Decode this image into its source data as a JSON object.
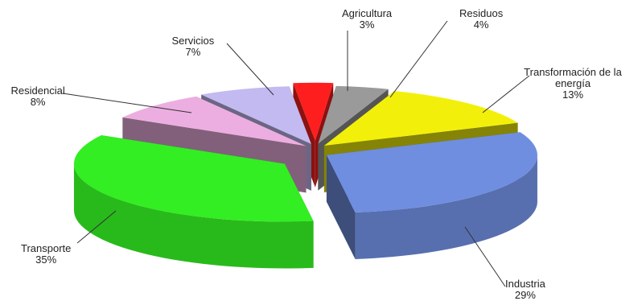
{
  "chart_data": {
    "type": "pie",
    "title": "",
    "style": "3d-exploded",
    "unit": "%",
    "slices": [
      {
        "name": "Agricultura",
        "value": 3,
        "label": "3%",
        "color": "#ff1e1e"
      },
      {
        "name": "Residuos",
        "value": 4,
        "label": "4%",
        "color": "#9a9a9a"
      },
      {
        "name": "Transformación de la energía",
        "value": 13,
        "label": "13%",
        "color": "#f2f00a"
      },
      {
        "name": "Industria",
        "value": 29,
        "label": "29%",
        "color": "#6f8ee0"
      },
      {
        "name": "Transporte",
        "value": 35,
        "label": "35%",
        "color": "#33ee22"
      },
      {
        "name": "Residencial",
        "value": 8,
        "label": "8%",
        "color": "#ecaee0"
      },
      {
        "name": "Servicios",
        "value": 7,
        "label": "7%",
        "color": "#c2baf0"
      }
    ]
  }
}
